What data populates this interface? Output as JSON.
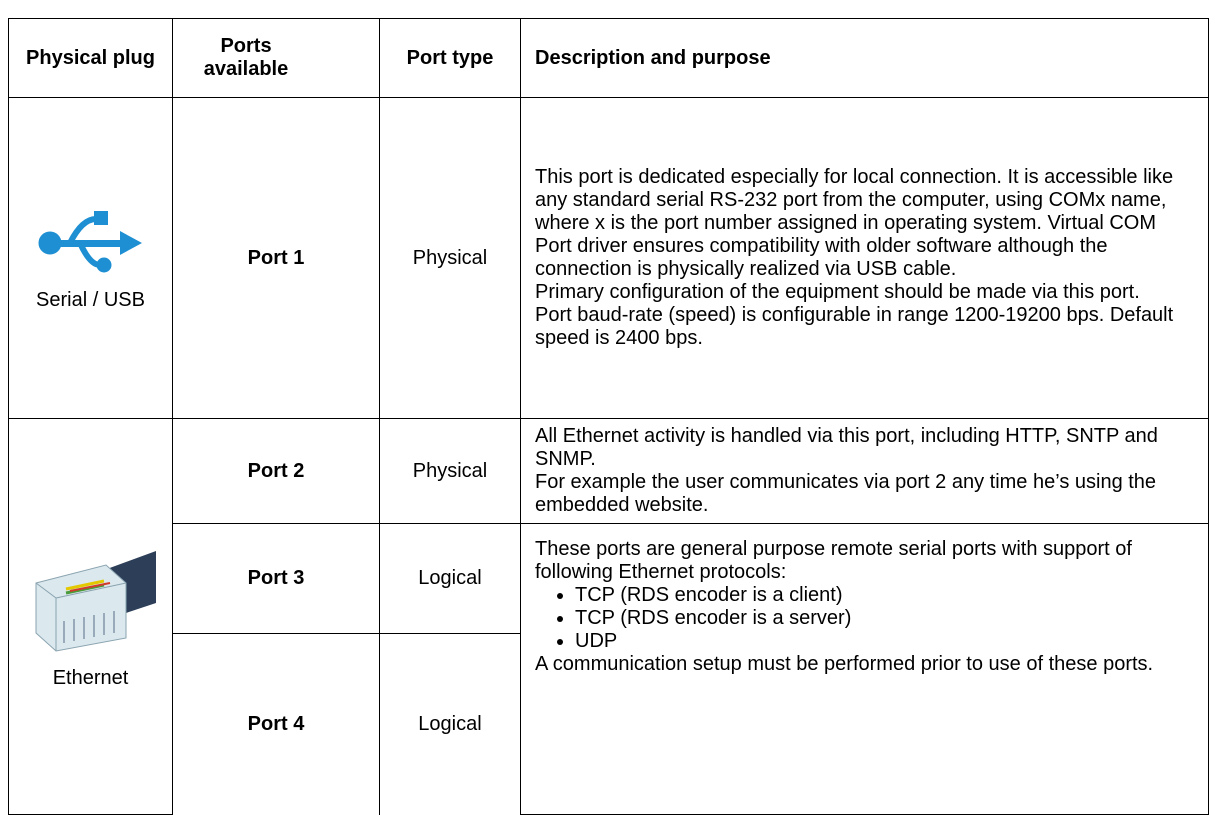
{
  "table": {
    "headers": [
      "Physical plug",
      "Ports available",
      "Port type",
      "Description and purpose"
    ],
    "rows": [
      {
        "plug": "Serial / USB",
        "port": "Port 1",
        "type": "Physical",
        "description": [
          "This port is dedicated especially for local connection. It is accessible like any standard serial RS-232 port from the computer, using COMx name, where x is the port number assigned in operating system. Virtual COM Port driver ensures compatibility with older software although the connection is physically realized via USB cable.",
          "Primary configuration of the equipment should be made via this port.",
          "Port baud-rate (speed) is configurable in range 1200-19200 bps. Default speed is 2400 bps."
        ]
      },
      {
        "plug": "Ethernet",
        "port": "Port 2",
        "type": "Physical",
        "description": [
          "All Ethernet activity is handled via this port, including HTTP, SNTP and SNMP.",
          "For example the user communicates via port 2 any time he’s using the embedded website."
        ]
      },
      {
        "port": "Port 3",
        "type": "Logical",
        "description": [
          "These ports are general purpose remote serial ports with support of following Ethernet protocols:"
        ],
        "bullets": [
          "TCP (RDS encoder is a client)",
          "TCP (RDS encoder is a server)",
          "UDP"
        ],
        "note": "A communication setup must be performed prior to use of these ports."
      },
      {
        "port": "Port 4",
        "type": "Logical"
      }
    ]
  }
}
